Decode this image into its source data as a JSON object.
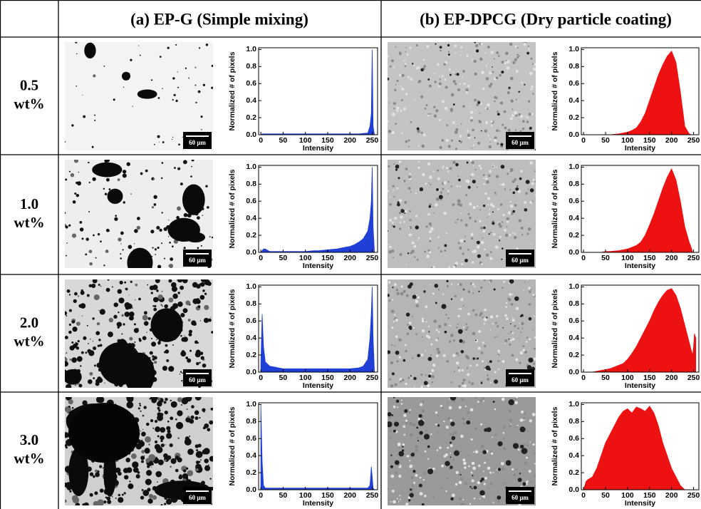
{
  "table": {
    "headers": [
      "(a) EP-G (Simple mixing)",
      "(b) EP-DPCG (Dry particle coating)"
    ],
    "rows": [
      {
        "amount": "0.5",
        "unit": "wt%"
      },
      {
        "amount": "1.0",
        "unit": "wt%"
      },
      {
        "amount": "2.0",
        "unit": "wt%"
      },
      {
        "amount": "3.0",
        "unit": "wt%"
      }
    ],
    "scale_bar": "60 μm"
  },
  "chart_data": [
    {
      "type": "area",
      "color": "#1f3fd6",
      "xlabel": "Intensity",
      "ylabel": "Normalized # of pixels",
      "xlim": [
        -5,
        262
      ],
      "ylim": [
        0,
        1.02
      ],
      "xticks": [
        0,
        50,
        100,
        150,
        200,
        250
      ],
      "yticks": [
        {
          "value": 0,
          "label": "0.0"
        },
        0.2,
        0.4,
        0.6,
        0.8,
        {
          "value": 1,
          "label": "1.0"
        }
      ],
      "x": [
        0,
        3,
        6,
        10,
        20,
        30,
        40,
        50,
        60,
        70,
        80,
        90,
        100,
        110,
        120,
        130,
        140,
        150,
        160,
        170,
        180,
        190,
        200,
        210,
        220,
        230,
        240,
        245,
        248,
        250,
        252,
        255
      ],
      "values": [
        0,
        0.01,
        0.01,
        0.01,
        0.01,
        0.01,
        0.01,
        0.01,
        0.01,
        0.01,
        0.01,
        0.01,
        0.01,
        0.01,
        0.01,
        0.01,
        0.01,
        0.01,
        0.01,
        0.01,
        0.01,
        0.01,
        0.01,
        0.01,
        0.01,
        0.015,
        0.02,
        0.1,
        0.25,
        1.0,
        0.1,
        0
      ]
    },
    {
      "type": "area",
      "color": "#ee1111",
      "xlabel": "Intensity",
      "ylabel": "Normalized # of pixels",
      "xlim": [
        -5,
        262
      ],
      "ylim": [
        0,
        1.02
      ],
      "xticks": [
        0,
        50,
        100,
        150,
        200,
        250
      ],
      "yticks": [
        {
          "value": 0,
          "label": "0.0"
        },
        0.2,
        0.4,
        0.6,
        0.8,
        {
          "value": 1,
          "label": "1.0"
        }
      ],
      "x": [
        0,
        3,
        6,
        10,
        20,
        30,
        40,
        50,
        60,
        70,
        80,
        90,
        100,
        110,
        120,
        130,
        140,
        150,
        160,
        170,
        180,
        190,
        200,
        210,
        220,
        230,
        240,
        245,
        248,
        250,
        252,
        255
      ],
      "values": [
        0,
        0,
        0,
        0,
        0,
        0,
        0,
        0,
        0,
        0.005,
        0.01,
        0.02,
        0.03,
        0.05,
        0.08,
        0.15,
        0.25,
        0.4,
        0.55,
        0.7,
        0.82,
        0.92,
        0.98,
        0.85,
        0.5,
        0.1,
        0.01,
        0,
        0,
        0,
        0,
        0
      ]
    },
    {
      "type": "area",
      "color": "#1f3fd6",
      "xlabel": "Intensity",
      "ylabel": "Normalized # of pixels",
      "xlim": [
        -5,
        262
      ],
      "ylim": [
        0,
        1.02
      ],
      "xticks": [
        0,
        50,
        100,
        150,
        200,
        250
      ],
      "yticks": [
        {
          "value": 0,
          "label": "0.0"
        },
        0.2,
        0.4,
        0.6,
        0.8,
        {
          "value": 1,
          "label": "1.0"
        }
      ],
      "x": [
        0,
        3,
        6,
        10,
        20,
        30,
        40,
        50,
        60,
        70,
        80,
        90,
        100,
        110,
        120,
        130,
        140,
        150,
        160,
        170,
        180,
        190,
        200,
        210,
        220,
        230,
        240,
        245,
        248,
        250,
        252,
        255
      ],
      "values": [
        0,
        0.02,
        0.04,
        0.04,
        0.01,
        0.01,
        0.01,
        0.01,
        0.01,
        0.01,
        0.01,
        0.01,
        0.01,
        0.015,
        0.02,
        0.02,
        0.025,
        0.03,
        0.035,
        0.04,
        0.05,
        0.06,
        0.07,
        0.09,
        0.12,
        0.16,
        0.25,
        0.4,
        0.6,
        1.0,
        0.3,
        0
      ]
    },
    {
      "type": "area",
      "color": "#ee1111",
      "xlabel": "Intensity",
      "ylabel": "Normalized # of pixels",
      "xlim": [
        -5,
        262
      ],
      "ylim": [
        0,
        1.02
      ],
      "xticks": [
        0,
        50,
        100,
        150,
        200,
        250
      ],
      "yticks": [
        {
          "value": 0,
          "label": "0.0"
        },
        0.2,
        0.4,
        0.6,
        0.8,
        {
          "value": 1,
          "label": "1.0"
        }
      ],
      "x": [
        0,
        3,
        6,
        10,
        20,
        30,
        40,
        50,
        60,
        70,
        80,
        90,
        100,
        110,
        120,
        130,
        140,
        150,
        160,
        170,
        180,
        190,
        200,
        210,
        220,
        230,
        240,
        245,
        248,
        250,
        252,
        255
      ],
      "values": [
        0,
        0,
        0,
        0,
        0,
        0,
        0,
        0.01,
        0.01,
        0.015,
        0.02,
        0.03,
        0.04,
        0.06,
        0.08,
        0.12,
        0.2,
        0.32,
        0.45,
        0.6,
        0.75,
        0.88,
        0.98,
        0.85,
        0.6,
        0.3,
        0.12,
        0.05,
        0,
        0,
        0,
        0
      ]
    },
    {
      "type": "area",
      "color": "#1f3fd6",
      "xlabel": "Intensity",
      "ylabel": "Normalized # of pixels",
      "xlim": [
        -5,
        262
      ],
      "ylim": [
        0,
        1.02
      ],
      "xticks": [
        0,
        50,
        100,
        150,
        200,
        250
      ],
      "yticks": [
        {
          "value": 0,
          "label": "0.0"
        },
        0.2,
        0.4,
        0.6,
        0.8,
        {
          "value": 1,
          "label": "1.0"
        }
      ],
      "x": [
        0,
        3,
        6,
        10,
        20,
        30,
        40,
        50,
        60,
        70,
        80,
        90,
        100,
        110,
        120,
        130,
        140,
        150,
        160,
        170,
        180,
        190,
        200,
        210,
        220,
        230,
        240,
        245,
        248,
        250,
        252,
        255
      ],
      "values": [
        0.1,
        0.68,
        0.3,
        0.12,
        0.07,
        0.06,
        0.05,
        0.04,
        0.04,
        0.04,
        0.04,
        0.04,
        0.04,
        0.04,
        0.04,
        0.04,
        0.04,
        0.04,
        0.04,
        0.04,
        0.04,
        0.04,
        0.04,
        0.045,
        0.05,
        0.07,
        0.15,
        0.4,
        0.7,
        1.0,
        0.4,
        0
      ]
    },
    {
      "type": "area",
      "color": "#ee1111",
      "xlabel": "Intensity",
      "ylabel": "Normalized # of pixels",
      "xlim": [
        -5,
        262
      ],
      "ylim": [
        0,
        1.02
      ],
      "xticks": [
        0,
        50,
        100,
        150,
        200,
        250
      ],
      "yticks": [
        {
          "value": 0,
          "label": "0.0"
        },
        0.2,
        0.4,
        0.6,
        0.8,
        {
          "value": 1,
          "label": "1.0"
        }
      ],
      "x": [
        0,
        3,
        6,
        10,
        20,
        30,
        40,
        50,
        60,
        70,
        80,
        90,
        100,
        110,
        120,
        130,
        140,
        150,
        160,
        170,
        180,
        190,
        200,
        210,
        220,
        230,
        240,
        245,
        248,
        250,
        252,
        255
      ],
      "values": [
        0,
        0,
        0,
        0,
        0,
        0.01,
        0.02,
        0.03,
        0.04,
        0.06,
        0.08,
        0.1,
        0.15,
        0.22,
        0.3,
        0.4,
        0.5,
        0.6,
        0.72,
        0.82,
        0.9,
        0.96,
        0.98,
        0.9,
        0.75,
        0.55,
        0.35,
        0.25,
        0.2,
        0.3,
        0.45,
        0.4
      ]
    },
    {
      "type": "area",
      "color": "#1f3fd6",
      "xlabel": "Intensity",
      "ylabel": "Normalized # of pixels",
      "xlim": [
        -5,
        262
      ],
      "ylim": [
        0,
        1.02
      ],
      "xticks": [
        0,
        50,
        100,
        150,
        200,
        250
      ],
      "yticks": [
        {
          "value": 0,
          "label": "0.0"
        },
        0.2,
        0.4,
        0.6,
        0.8,
        {
          "value": 1,
          "label": "1.0"
        }
      ],
      "x": [
        0,
        3,
        6,
        10,
        20,
        30,
        40,
        50,
        60,
        70,
        80,
        90,
        100,
        110,
        120,
        130,
        140,
        150,
        160,
        170,
        180,
        190,
        200,
        210,
        220,
        230,
        240,
        245,
        248,
        250,
        252,
        255
      ],
      "values": [
        1.0,
        0.33,
        0.05,
        0.02,
        0.02,
        0.02,
        0.02,
        0.02,
        0.02,
        0.02,
        0.02,
        0.02,
        0.02,
        0.02,
        0.02,
        0.02,
        0.02,
        0.02,
        0.02,
        0.02,
        0.02,
        0.02,
        0.02,
        0.02,
        0.02,
        0.02,
        0.02,
        0.05,
        0.27,
        0.15,
        0.02,
        0
      ]
    },
    {
      "type": "area",
      "color": "#ee1111",
      "xlabel": "Intensity",
      "ylabel": "Normalized # of pixels",
      "xlim": [
        -5,
        262
      ],
      "ylim": [
        0,
        1.02
      ],
      "xticks": [
        0,
        50,
        100,
        150,
        200,
        250
      ],
      "yticks": [
        {
          "value": 0,
          "label": "0.0"
        },
        0.2,
        0.4,
        0.6,
        0.8,
        {
          "value": 1,
          "label": "1.0"
        }
      ],
      "x": [
        0,
        3,
        6,
        10,
        20,
        30,
        40,
        50,
        60,
        70,
        80,
        90,
        100,
        110,
        120,
        130,
        140,
        150,
        160,
        170,
        180,
        190,
        200,
        210,
        220,
        230,
        240,
        245,
        248,
        250,
        252,
        255
      ],
      "values": [
        0,
        0.05,
        0.1,
        0.12,
        0.15,
        0.25,
        0.4,
        0.55,
        0.65,
        0.75,
        0.85,
        0.92,
        0.95,
        0.9,
        0.97,
        0.95,
        0.92,
        0.98,
        0.9,
        0.75,
        0.55,
        0.4,
        0.25,
        0.15,
        0.05,
        0,
        0,
        0,
        0,
        0,
        0,
        0
      ]
    }
  ]
}
